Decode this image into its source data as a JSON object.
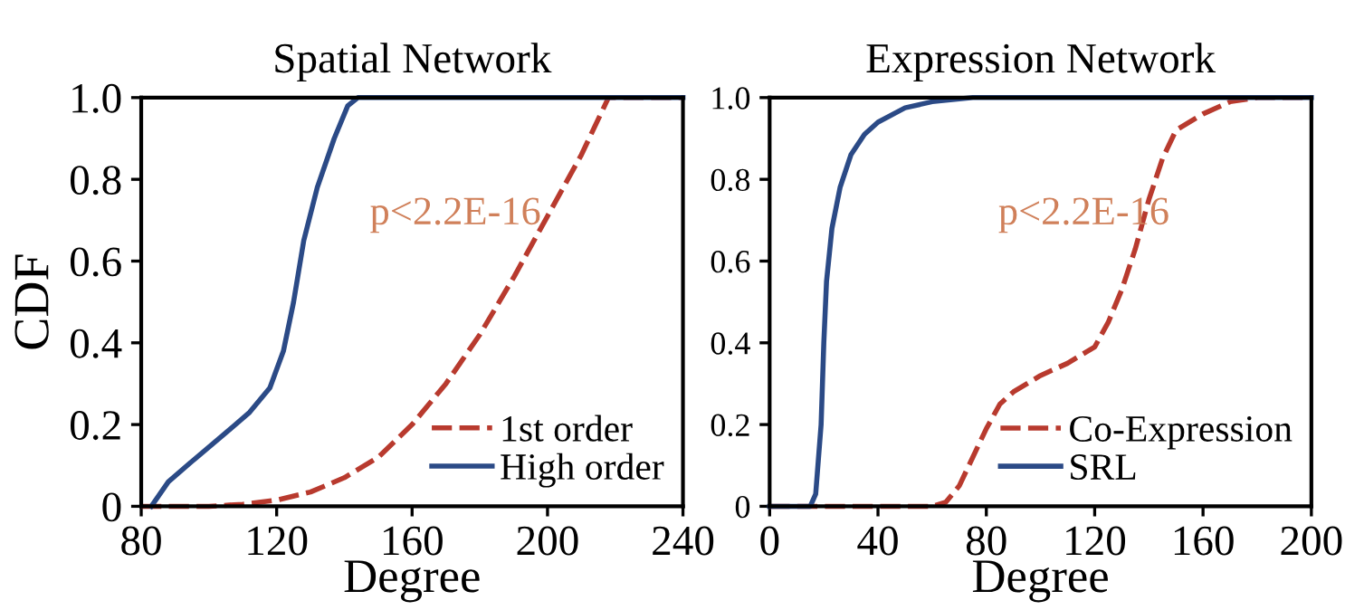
{
  "chart_data": [
    {
      "type": "line",
      "title": "Spatial Network",
      "xlabel": "Degree",
      "ylabel": "CDF",
      "xlim": [
        80,
        240
      ],
      "xticks": [
        80,
        120,
        160,
        200,
        240
      ],
      "ylim": [
        0,
        1
      ],
      "yticks": [
        0,
        0.2,
        0.4,
        0.6,
        0.8,
        {
          "value": 1.0,
          "label": "1.0"
        }
      ],
      "grid": false,
      "legend": "bottom right",
      "annotations": [
        "p<2.2E-16"
      ],
      "series": [
        {
          "name": "1st order",
          "color": "#b83a2e",
          "line_style": "dashed",
          "x": [
            80,
            100,
            110,
            120,
            130,
            140,
            150,
            160,
            170,
            180,
            190,
            200,
            210,
            218,
            240
          ],
          "values": [
            0,
            0,
            0.005,
            0.015,
            0.035,
            0.07,
            0.12,
            0.2,
            0.3,
            0.42,
            0.56,
            0.71,
            0.86,
            1.0,
            1.0
          ]
        },
        {
          "name": "High order",
          "color": "#2b4a86",
          "line_style": "solid",
          "x": [
            83,
            88,
            95,
            105,
            112,
            118,
            122,
            125,
            128,
            132,
            137,
            141,
            144,
            240
          ],
          "values": [
            0,
            0.06,
            0.11,
            0.18,
            0.23,
            0.29,
            0.38,
            0.5,
            0.65,
            0.78,
            0.9,
            0.98,
            1.0,
            1.0
          ]
        }
      ]
    },
    {
      "type": "line",
      "title": "Expression Network",
      "xlabel": "Degree",
      "xlim": [
        0,
        200
      ],
      "xticks": [
        0,
        40,
        80,
        120,
        160,
        200
      ],
      "ylim": [
        0,
        1
      ],
      "yticks": [
        0,
        0.2,
        0.4,
        0.6,
        0.8,
        {
          "value": 1.0,
          "label": "1.0"
        }
      ],
      "grid": false,
      "legend": "bottom right",
      "annotations": [
        "p<2.2E-16"
      ],
      "series": [
        {
          "name": "Co-Expression",
          "color": "#b83a2e",
          "line_style": "dashed",
          "x": [
            0,
            60,
            65,
            70,
            75,
            80,
            85,
            90,
            100,
            110,
            120,
            125,
            130,
            135,
            140,
            145,
            150,
            160,
            170,
            180,
            200
          ],
          "values": [
            0,
            0,
            0.01,
            0.05,
            0.12,
            0.19,
            0.25,
            0.28,
            0.32,
            0.35,
            0.39,
            0.45,
            0.53,
            0.63,
            0.75,
            0.85,
            0.92,
            0.96,
            0.99,
            1.0,
            1.0
          ]
        },
        {
          "name": "SRL",
          "color": "#2b4a86",
          "line_style": "solid",
          "x": [
            0,
            15,
            17,
            19,
            20,
            21,
            23,
            26,
            30,
            35,
            40,
            50,
            60,
            75,
            200
          ],
          "values": [
            0,
            0,
            0.03,
            0.2,
            0.4,
            0.55,
            0.68,
            0.78,
            0.86,
            0.91,
            0.94,
            0.975,
            0.99,
            1.0,
            1.0
          ]
        }
      ]
    }
  ]
}
